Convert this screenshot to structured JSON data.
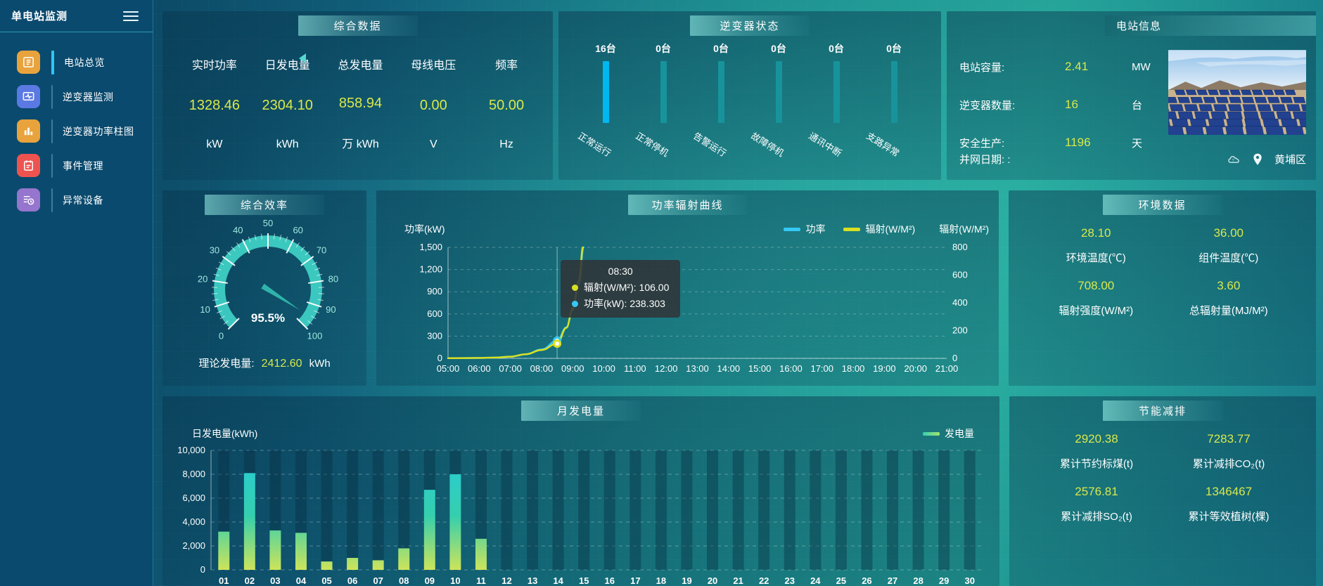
{
  "app": {
    "title": "单电站监测"
  },
  "colors": {
    "value_yellow": "#d9e84b",
    "power_line": "#35c8f5",
    "radiation_line": "#d9e021",
    "inverter_highlight_bar": "#00b7f0",
    "inverter_normal_bar": "#17939b",
    "gauge": "#3ecfc4",
    "bar_gradient_top": "#28cbd8",
    "bar_gradient_bottom": "#cde45a"
  },
  "sidebar": {
    "items": [
      {
        "label": "电站总览",
        "icon": "station-overview-icon",
        "tile_color": "#e8a33d",
        "active": true
      },
      {
        "label": "逆变器监测",
        "icon": "inverter-monitor-icon",
        "tile_color": "#5b79e3",
        "active": false
      },
      {
        "label": "逆变器功率柱图",
        "icon": "inverter-power-bars-icon",
        "tile_color": "#e8a33d",
        "active": false
      },
      {
        "label": "事件管理",
        "icon": "event-management-icon",
        "tile_color": "#ef5350",
        "active": false
      },
      {
        "label": "异常设备",
        "icon": "abnormal-device-icon",
        "tile_color": "#9575cd",
        "active": false
      }
    ]
  },
  "panels": {
    "summary": {
      "title": "综合数据",
      "metrics": [
        {
          "label": "实时功率",
          "value": "1328.46",
          "unit": "kW"
        },
        {
          "label": "日发电量",
          "value": "2304.10",
          "unit": "kWh"
        },
        {
          "label": "总发电量",
          "value": "858.94",
          "unit": "万 kWh"
        },
        {
          "label": "母线电压",
          "value": "0.00",
          "unit": "V"
        },
        {
          "label": "频率",
          "value": "50.00",
          "unit": "Hz"
        }
      ]
    },
    "inverter_status": {
      "title": "逆变器状态",
      "statuses": [
        {
          "count": "16台",
          "label": "正常运行",
          "highlight": true
        },
        {
          "count": "0台",
          "label": "正常停机",
          "highlight": false
        },
        {
          "count": "0台",
          "label": "告警运行",
          "highlight": false
        },
        {
          "count": "0台",
          "label": "故障停机",
          "highlight": false
        },
        {
          "count": "0台",
          "label": "通讯中断",
          "highlight": false
        },
        {
          "count": "0台",
          "label": "支路异常",
          "highlight": false
        }
      ]
    },
    "station": {
      "title": "电站信息",
      "rows": [
        {
          "label": "电站容量:",
          "value": "2.41",
          "unit": "MW"
        },
        {
          "label": "逆变器数量:",
          "value": "16",
          "unit": "台"
        },
        {
          "label": "安全生产:",
          "value": "1196",
          "unit": "天"
        }
      ],
      "grid_date_label": "并网日期:  :",
      "location": "黄埔区",
      "photo": "solar-farm-photo"
    },
    "efficiency": {
      "title": "综合效率",
      "gauge": {
        "value": 95.5,
        "display": "95.5%",
        "min": 0,
        "max": 100,
        "tick_step": 10
      },
      "theory_label": "理论发电量:",
      "theory_value": "2412.60",
      "theory_unit": "kWh"
    },
    "environment": {
      "title": "环境数据",
      "cells": [
        {
          "value": "28.10",
          "label": "环境温度(℃)"
        },
        {
          "value": "36.00",
          "label": "组件温度(℃)"
        },
        {
          "value": "708.00",
          "label": "辐射强度(W/M²)"
        },
        {
          "value": "3.60",
          "label": "总辐射量(MJ/M²)"
        }
      ]
    },
    "energy_saving": {
      "title": "节能减排",
      "cells": [
        {
          "value": "2920.38",
          "label": "累计节约标煤(t)"
        },
        {
          "value": "7283.77",
          "label": "累计减排CO₂(t)"
        },
        {
          "value": "2576.81",
          "label": "累计减排SO₂(t)"
        },
        {
          "value": "1346467",
          "label": "累计等效植树(棵)"
        }
      ]
    }
  },
  "chart_data": [
    {
      "type": "line",
      "title": "功率辐射曲线",
      "x_ticks": [
        "05:00",
        "06:00",
        "07:00",
        "08:00",
        "09:00",
        "10:00",
        "11:00",
        "12:00",
        "13:00",
        "14:00",
        "15:00",
        "16:00",
        "17:00",
        "18:00",
        "19:00",
        "20:00",
        "21:00"
      ],
      "x_range": [
        5,
        21
      ],
      "left_axis": {
        "title": "功率(kW)",
        "min": 0,
        "max": 1500,
        "ticks": [
          "1,500",
          "1,200",
          "900",
          "600",
          "300",
          "0"
        ]
      },
      "right_axis": {
        "title": "辐射(W/M²)",
        "min": 0,
        "max": 800,
        "ticks": [
          "800",
          "600",
          "400",
          "200",
          "0"
        ]
      },
      "legend": [
        {
          "label": "功率",
          "color": "#35c8f5"
        },
        {
          "label": "辐射(W/M²)",
          "color": "#d9e021"
        }
      ],
      "series": [
        {
          "name": "功率",
          "axis": "left",
          "color": "#35c8f5",
          "points": [
            [
              5,
              2
            ],
            [
              5.5,
              3
            ],
            [
              6,
              5
            ],
            [
              6.5,
              10
            ],
            [
              7,
              22
            ],
            [
              7.5,
              55
            ],
            [
              8,
              120
            ],
            [
              8.5,
              238.303
            ],
            [
              8.8,
              420
            ],
            [
              9,
              650
            ],
            [
              9.2,
              1000
            ],
            [
              9.35,
              1500
            ]
          ]
        },
        {
          "name": "辐射(W/M²)",
          "axis": "right",
          "color": "#d9e021",
          "points": [
            [
              5,
              1
            ],
            [
              5.5,
              2
            ],
            [
              6,
              3
            ],
            [
              6.5,
              6
            ],
            [
              7,
              12
            ],
            [
              7.5,
              30
            ],
            [
              8,
              60
            ],
            [
              8.5,
              106
            ],
            [
              8.8,
              220
            ],
            [
              9,
              360
            ],
            [
              9.2,
              560
            ],
            [
              9.33,
              800
            ]
          ]
        }
      ],
      "tooltip": {
        "x": 8.5,
        "time": "08:30",
        "rows": [
          {
            "label": "辐射(W/M²)",
            "value": "106.00",
            "color": "#d9e021"
          },
          {
            "label": "功率(kW)",
            "value": "238.303",
            "color": "#35c8f5"
          }
        ]
      }
    },
    {
      "type": "bar",
      "title": "月发电量",
      "ylabel": "日发电量(kWh)",
      "ylim": [
        0,
        10000
      ],
      "y_ticks": [
        "10,000",
        "8,000",
        "6,000",
        "4,000",
        "2,000",
        "0"
      ],
      "categories": [
        "01",
        "02",
        "03",
        "04",
        "05",
        "06",
        "07",
        "08",
        "09",
        "10",
        "11",
        "12",
        "13",
        "14",
        "15",
        "16",
        "17",
        "18",
        "19",
        "20",
        "21",
        "22",
        "23",
        "24",
        "25",
        "26",
        "27",
        "28",
        "29",
        "30"
      ],
      "values": [
        3200,
        8100,
        3300,
        3100,
        700,
        1000,
        800,
        1800,
        6700,
        8000,
        2600,
        0,
        0,
        0,
        0,
        0,
        0,
        0,
        0,
        0,
        0,
        0,
        0,
        0,
        0,
        0,
        0,
        0,
        0,
        0
      ],
      "legend": [
        {
          "label": "发电量"
        }
      ]
    }
  ]
}
